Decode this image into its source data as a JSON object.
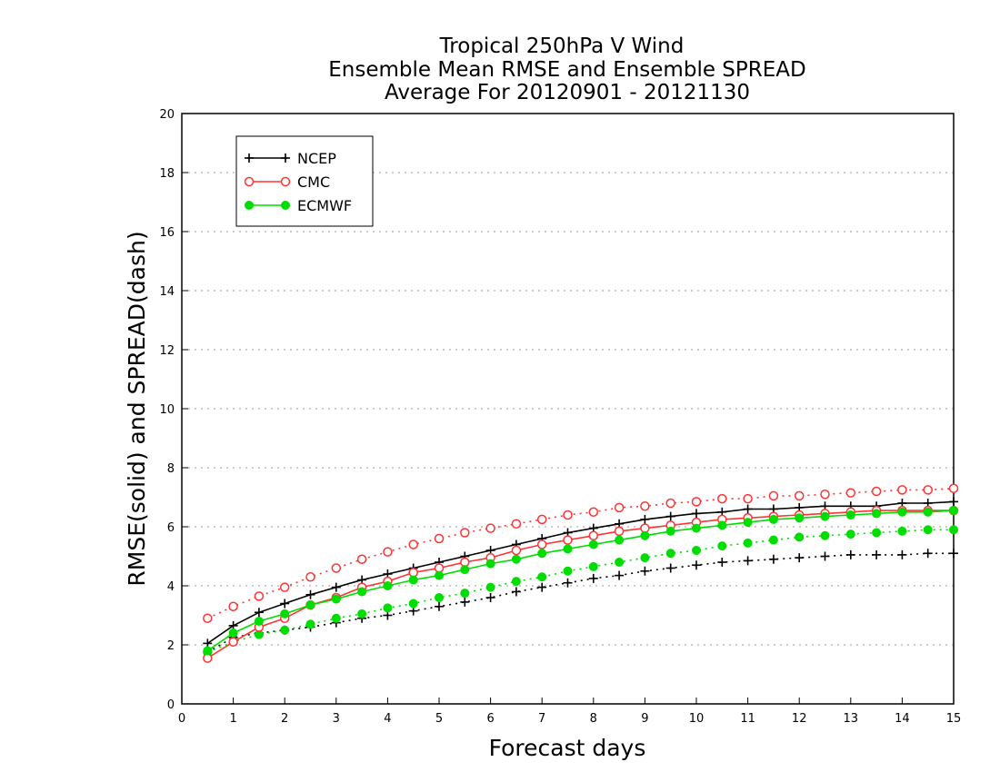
{
  "chart_data": {
    "type": "line",
    "title_lines": [
      "Tropical 250hPa V Wind",
      "Ensemble Mean RMSE and Ensemble SPREAD",
      "Average For 20120901 - 20121130"
    ],
    "xlabel": "Forecast days",
    "ylabel": "RMSE(solid) and SPREAD(dash)",
    "xlim": [
      0,
      15
    ],
    "ylim": [
      0,
      20
    ],
    "xticks": [
      "0",
      "1",
      "2",
      "3",
      "4",
      "5",
      "6",
      "7",
      "8",
      "9",
      "10",
      "11",
      "12",
      "13",
      "14",
      "15"
    ],
    "yticks": [
      "0",
      "2",
      "4",
      "6",
      "8",
      "10",
      "12",
      "14",
      "16",
      "18",
      "20"
    ],
    "grid": "horizontal dotted",
    "legend_position": "top-left",
    "x": [
      0.5,
      1,
      1.5,
      2,
      2.5,
      3,
      3.5,
      4,
      4.5,
      5,
      5.5,
      6,
      6.5,
      7,
      7.5,
      8,
      8.5,
      9,
      9.5,
      10,
      10.5,
      11,
      11.5,
      12,
      12.5,
      13,
      13.5,
      14,
      14.5,
      15
    ],
    "series": [
      {
        "name": "NCEP",
        "color": "#000000",
        "marker": "plus",
        "rmse": [
          2.05,
          2.65,
          3.1,
          3.4,
          3.7,
          3.95,
          4.2,
          4.4,
          4.6,
          4.8,
          5.0,
          5.2,
          5.4,
          5.6,
          5.8,
          5.95,
          6.1,
          6.25,
          6.35,
          6.45,
          6.5,
          6.6,
          6.6,
          6.65,
          6.7,
          6.7,
          6.7,
          6.8,
          6.8,
          6.85
        ],
        "spread": [
          1.75,
          2.25,
          2.4,
          2.5,
          2.6,
          2.75,
          2.9,
          3.0,
          3.15,
          3.3,
          3.45,
          3.6,
          3.8,
          3.95,
          4.1,
          4.25,
          4.35,
          4.5,
          4.6,
          4.7,
          4.8,
          4.85,
          4.9,
          4.95,
          5.0,
          5.05,
          5.05,
          5.05,
          5.1,
          5.1
        ]
      },
      {
        "name": "CMC",
        "color": "#ff3333",
        "marker": "open-circle",
        "rmse": [
          1.55,
          2.1,
          2.6,
          2.9,
          3.35,
          3.6,
          3.95,
          4.15,
          4.45,
          4.6,
          4.8,
          4.95,
          5.2,
          5.4,
          5.55,
          5.7,
          5.85,
          5.95,
          6.05,
          6.15,
          6.25,
          6.3,
          6.35,
          6.4,
          6.45,
          6.5,
          6.55,
          6.55,
          6.55,
          6.55
        ],
        "spread": [
          2.9,
          3.3,
          3.65,
          3.95,
          4.3,
          4.6,
          4.9,
          5.15,
          5.4,
          5.6,
          5.8,
          5.95,
          6.1,
          6.25,
          6.4,
          6.5,
          6.65,
          6.7,
          6.8,
          6.85,
          6.95,
          6.95,
          7.05,
          7.05,
          7.1,
          7.15,
          7.2,
          7.25,
          7.25,
          7.3
        ]
      },
      {
        "name": "ECMWF",
        "color": "#00dd00",
        "marker": "filled-circle",
        "rmse": [
          1.8,
          2.4,
          2.8,
          3.05,
          3.35,
          3.55,
          3.8,
          4.0,
          4.2,
          4.35,
          4.55,
          4.75,
          4.9,
          5.1,
          5.25,
          5.4,
          5.55,
          5.7,
          5.85,
          5.95,
          6.05,
          6.15,
          6.25,
          6.3,
          6.35,
          6.4,
          6.45,
          6.5,
          6.5,
          6.55
        ],
        "spread": [
          1.75,
          2.1,
          2.35,
          2.5,
          2.7,
          2.9,
          3.05,
          3.25,
          3.4,
          3.6,
          3.75,
          3.95,
          4.15,
          4.3,
          4.5,
          4.65,
          4.8,
          4.95,
          5.1,
          5.2,
          5.35,
          5.45,
          5.55,
          5.65,
          5.7,
          5.75,
          5.8,
          5.85,
          5.9,
          5.9
        ]
      }
    ]
  }
}
